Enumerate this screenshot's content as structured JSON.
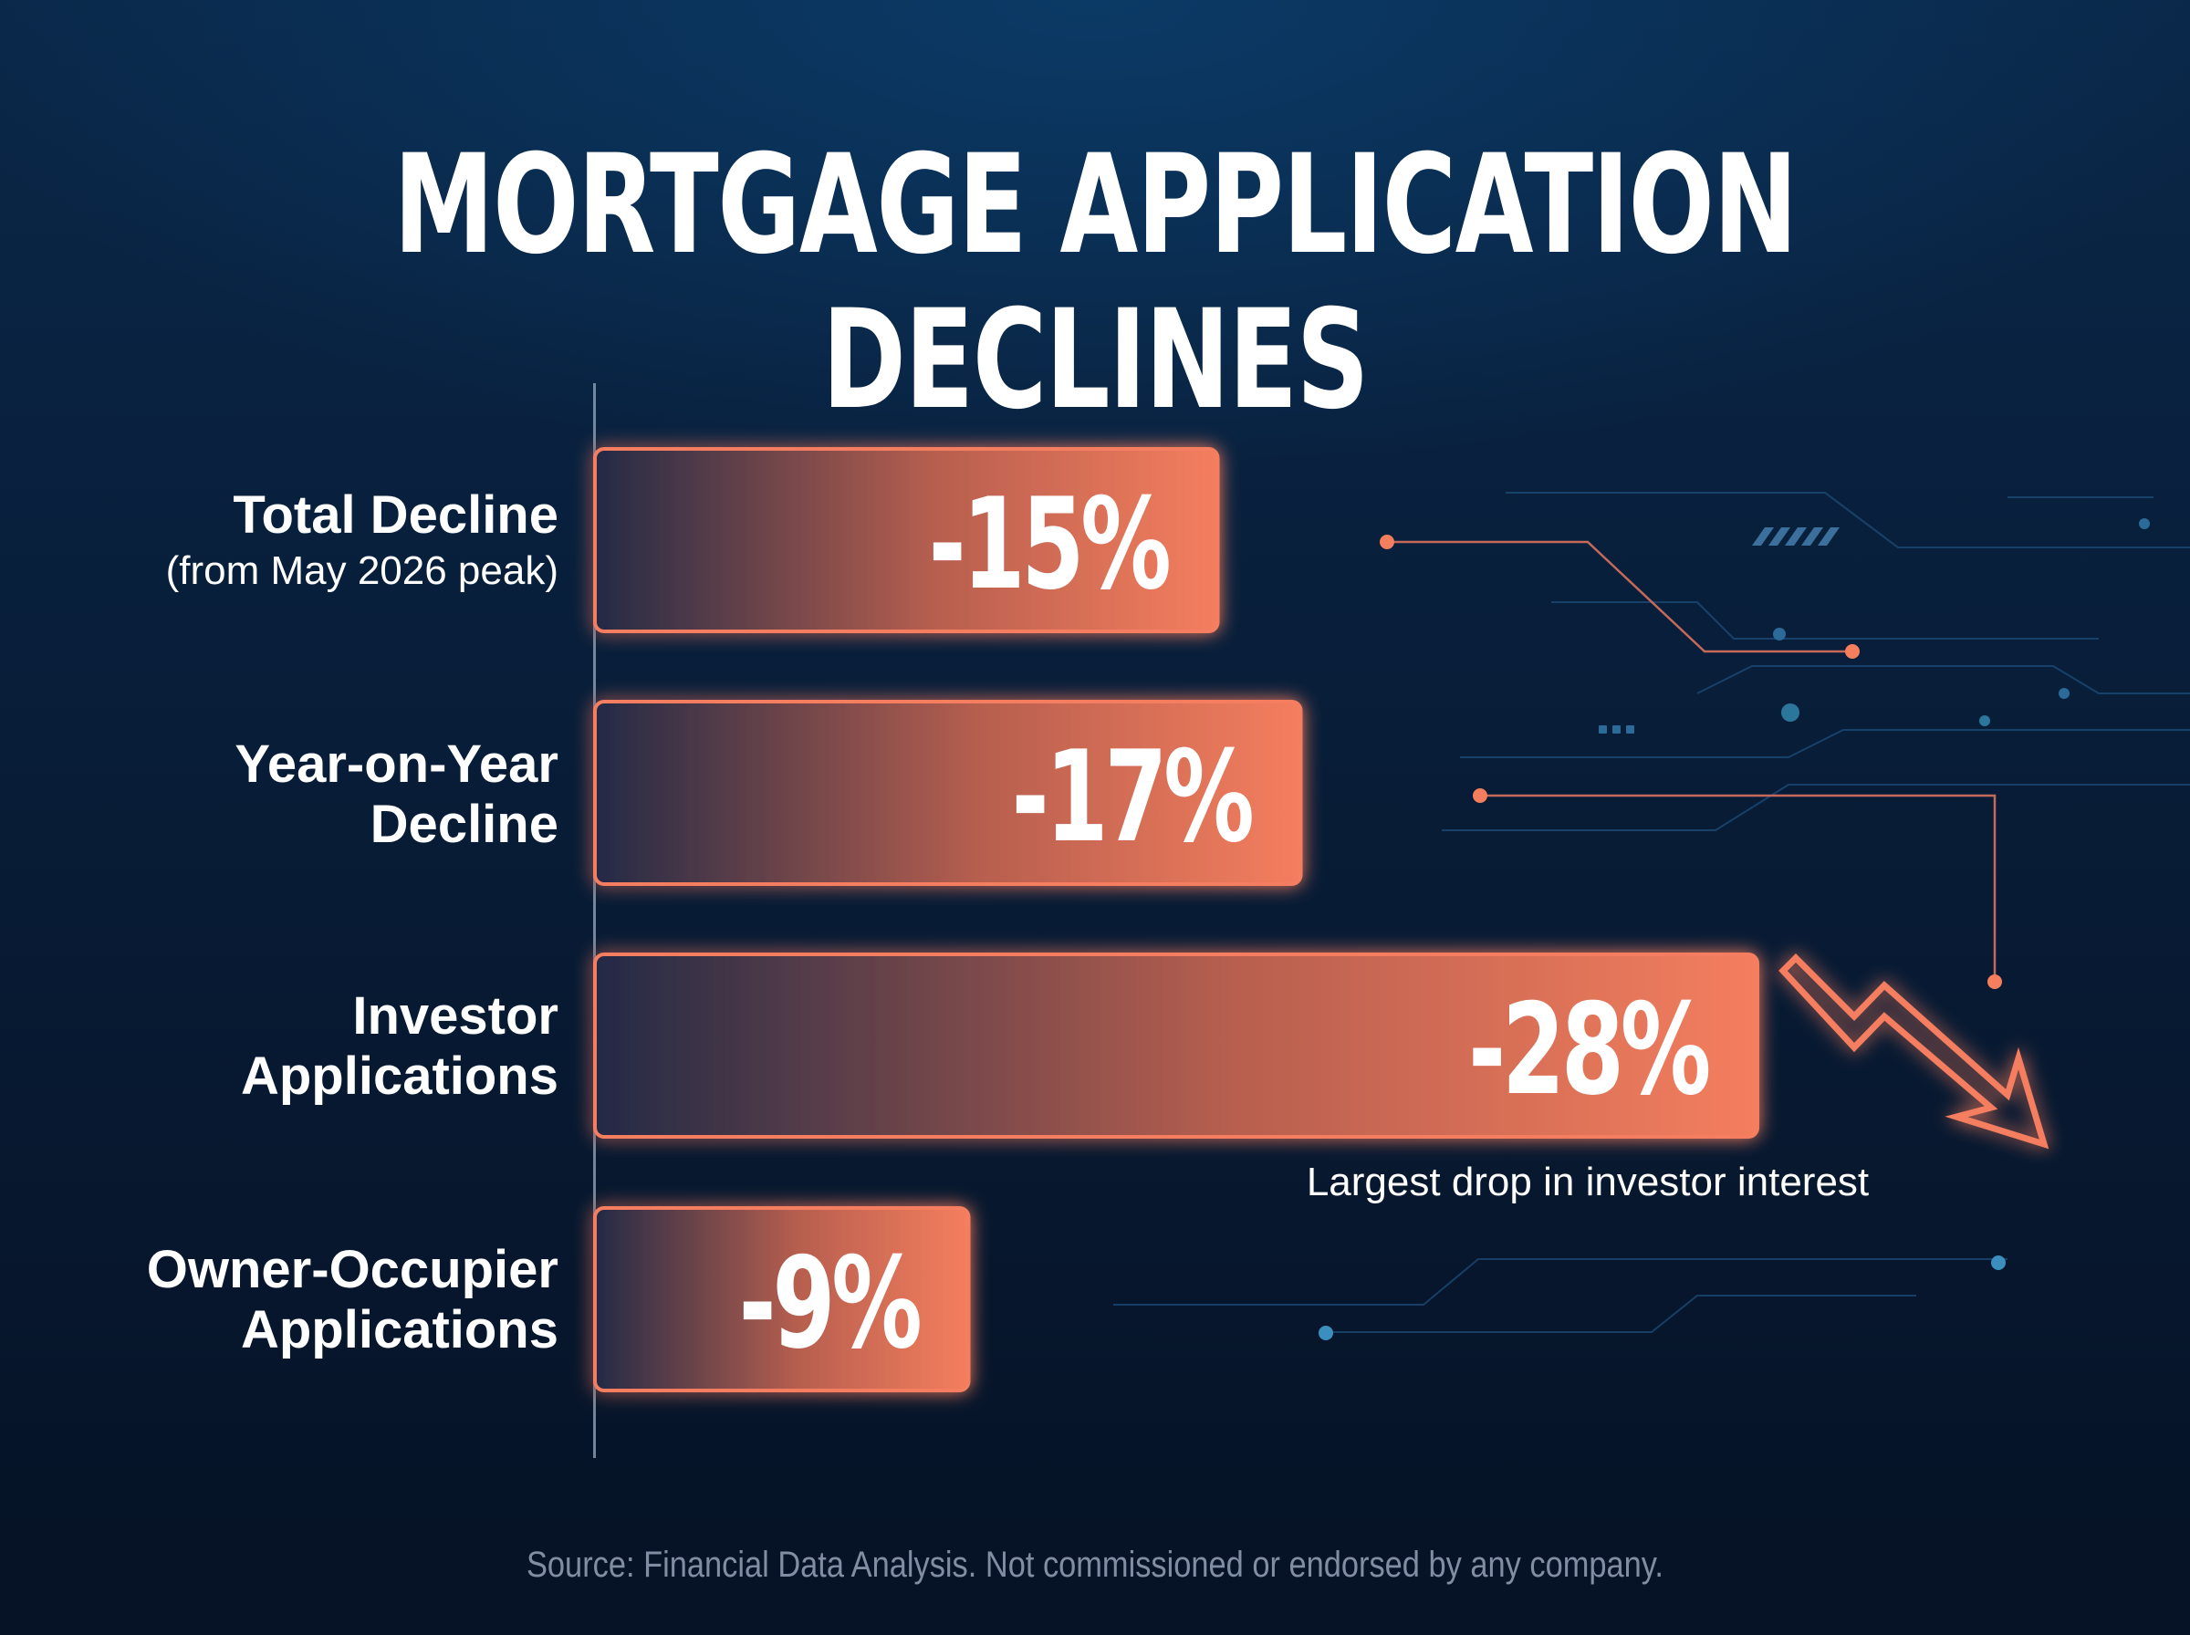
{
  "title": "MORTGAGE APPLICATION DECLINES",
  "chart_data": {
    "type": "bar",
    "orientation": "horizontal",
    "categories": [
      "Total Decline (from May 2026 peak)",
      "Year-on-Year Decline",
      "Investor Applications",
      "Owner-Occupier Applications"
    ],
    "category_lines": [
      [
        "Total Decline",
        "(from May 2026 peak)"
      ],
      [
        "Year-on-Year",
        "Decline"
      ],
      [
        "Investor",
        "Applications"
      ],
      [
        "Owner-Occupier",
        "Applications"
      ]
    ],
    "values": [
      -15,
      -17,
      -28,
      -9
    ],
    "data_labels": [
      "-15%",
      "-17%",
      "-28%",
      "-9%"
    ],
    "unit": "%",
    "annotation": "Largest drop in investor interest",
    "bar_color": "#f47e5e",
    "grid": false,
    "legend": "none"
  },
  "source": "Source: Financial Data Analysis. Not commissioned or endorsed by any company.",
  "colors": {
    "background": "#081d38",
    "bar_accent": "#f47e5e",
    "bar_dark": "#2a2c44",
    "text": "#ffffff",
    "source_text": "#7f8ea3"
  },
  "icons": [
    "downtrend-arrow-icon",
    "circuit-lines-decoration"
  ]
}
